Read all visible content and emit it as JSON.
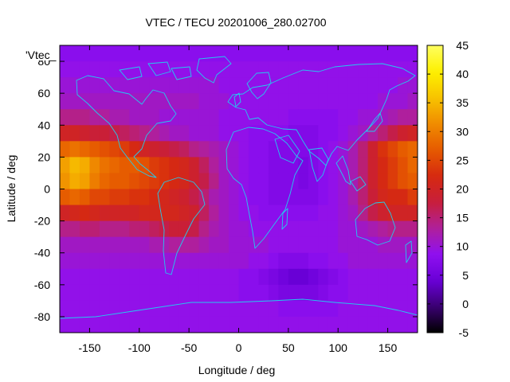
{
  "chart_data": {
    "type": "heatmap",
    "title": "VTEC / TECU 20201006_280.02700",
    "xlabel": "Longitude / deg",
    "ylabel": "Latitude / deg",
    "legend_label": "'Vtec_",
    "legend_placement": "top-left",
    "xlim": [
      -180,
      180
    ],
    "ylim": [
      -90,
      90
    ],
    "xticks": [
      -150,
      -100,
      -50,
      0,
      50,
      100,
      150
    ],
    "yticks": [
      -80,
      -60,
      -40,
      -20,
      0,
      20,
      40,
      60,
      80
    ],
    "colorbar": {
      "range": [
        -5,
        45
      ],
      "ticks": [
        -5,
        0,
        5,
        10,
        15,
        20,
        25,
        30,
        35,
        40,
        45
      ],
      "palette": [
        "#000000",
        "#3a0072",
        "#6a00d8",
        "#8f10f0",
        "#b0209a",
        "#c81e3a",
        "#d62a10",
        "#e65a00",
        "#f08c00",
        "#f8c400",
        "#fdf000",
        "#ffff60"
      ]
    },
    "grid": {
      "lon_step": 10,
      "lat_step": 10,
      "lons": [
        -180,
        -170,
        -160,
        -150,
        -140,
        -130,
        -120,
        -110,
        -100,
        -90,
        -80,
        -70,
        -60,
        -50,
        -40,
        -30,
        -20,
        -10,
        0,
        10,
        20,
        30,
        40,
        50,
        60,
        70,
        80,
        90,
        100,
        110,
        120,
        130,
        140,
        150,
        160,
        170
      ],
      "lats": [
        80,
        70,
        60,
        50,
        40,
        30,
        20,
        10,
        0,
        -10,
        -20,
        -30,
        -40,
        -50,
        -60,
        -70,
        -80,
        -90
      ],
      "values": [
        [
          8,
          8,
          8,
          8,
          8,
          8,
          8,
          8,
          8,
          8,
          8,
          8,
          8,
          8,
          8,
          8,
          8,
          8,
          8,
          8,
          8,
          8,
          8,
          8,
          8,
          8,
          8,
          8,
          8,
          8,
          8,
          8,
          8,
          8,
          8,
          8
        ],
        [
          9,
          9,
          9,
          9,
          9,
          9,
          9,
          9,
          9,
          9,
          9,
          9,
          9,
          9,
          9,
          9,
          9,
          9,
          9,
          9,
          9,
          9,
          9,
          9,
          9,
          9,
          9,
          9,
          9,
          9,
          9,
          9,
          9,
          9,
          9,
          9
        ],
        [
          10,
          10,
          10,
          10,
          10,
          10,
          10,
          10,
          10,
          10,
          10,
          10,
          10,
          10,
          10,
          10,
          9,
          9,
          9,
          9,
          9,
          9,
          9,
          9,
          9,
          9,
          9,
          9,
          9,
          9,
          9,
          9,
          9,
          9,
          10,
          10
        ],
        [
          11,
          11,
          11,
          11,
          11,
          11,
          11,
          11,
          11,
          11,
          11,
          11,
          11,
          11,
          10,
          10,
          10,
          9,
          9,
          9,
          9,
          9,
          9,
          9,
          9,
          9,
          9,
          9,
          9,
          9,
          9,
          9,
          10,
          10,
          10,
          11
        ],
        [
          14,
          14,
          14,
          13,
          13,
          12,
          12,
          11,
          11,
          11,
          10,
          10,
          10,
          10,
          10,
          10,
          9,
          9,
          9,
          9,
          9,
          9,
          9,
          8,
          8,
          8,
          8,
          8,
          9,
          9,
          10,
          10,
          11,
          12,
          13,
          13
        ],
        [
          20,
          20,
          19,
          18,
          18,
          17,
          16,
          15,
          14,
          13,
          12,
          11,
          11,
          10,
          10,
          10,
          9,
          9,
          9,
          8,
          8,
          8,
          8,
          7,
          7,
          7,
          8,
          8,
          9,
          10,
          11,
          13,
          15,
          17,
          19,
          20
        ],
        [
          28,
          29,
          28,
          27,
          26,
          25,
          24,
          22,
          20,
          19,
          18,
          17,
          16,
          14,
          13,
          12,
          11,
          10,
          9,
          8,
          8,
          7,
          7,
          7,
          7,
          7,
          8,
          9,
          10,
          12,
          15,
          19,
          23,
          25,
          27,
          28
        ],
        [
          33,
          35,
          34,
          31,
          29,
          28,
          27,
          27,
          26,
          24,
          23,
          22,
          21,
          19,
          16,
          13,
          11,
          10,
          9,
          8,
          8,
          7,
          7,
          7,
          6,
          7,
          8,
          9,
          10,
          12,
          15,
          19,
          22,
          24,
          26,
          28
        ],
        [
          32,
          34,
          33,
          30,
          28,
          27,
          27,
          26,
          25,
          24,
          23,
          22,
          21,
          19,
          17,
          14,
          11,
          10,
          9,
          8,
          8,
          7,
          7,
          7,
          6,
          7,
          8,
          9,
          10,
          12,
          15,
          19,
          22,
          24,
          26,
          27
        ],
        [
          27,
          28,
          27,
          25,
          25,
          24,
          24,
          23,
          23,
          22,
          21,
          20,
          19,
          17,
          15,
          12,
          11,
          10,
          9,
          8,
          8,
          7,
          7,
          7,
          7,
          7,
          8,
          9,
          10,
          12,
          15,
          18,
          21,
          22,
          22,
          24
        ],
        [
          20,
          21,
          22,
          21,
          20,
          20,
          20,
          20,
          21,
          21,
          21,
          21,
          20,
          19,
          16,
          13,
          11,
          10,
          9,
          9,
          8,
          8,
          8,
          8,
          8,
          8,
          9,
          9,
          10,
          11,
          14,
          17,
          19,
          20,
          20,
          20
        ],
        [
          14,
          14,
          15,
          15,
          14,
          14,
          14,
          15,
          15,
          16,
          17,
          18,
          18,
          17,
          14,
          12,
          11,
          10,
          10,
          9,
          9,
          9,
          9,
          9,
          9,
          9,
          9,
          9,
          10,
          10,
          11,
          12,
          13,
          14,
          14,
          14
        ],
        [
          11,
          11,
          11,
          11,
          11,
          11,
          11,
          11,
          11,
          12,
          12,
          13,
          13,
          13,
          12,
          11,
          11,
          10,
          10,
          10,
          10,
          9,
          9,
          9,
          9,
          9,
          9,
          9,
          10,
          10,
          10,
          10,
          11,
          11,
          11,
          11
        ],
        [
          10,
          10,
          10,
          10,
          10,
          10,
          10,
          10,
          10,
          10,
          10,
          10,
          10,
          10,
          10,
          10,
          10,
          10,
          10,
          9,
          9,
          8,
          7,
          7,
          7,
          8,
          8,
          9,
          9,
          10,
          10,
          10,
          10,
          10,
          10,
          10
        ],
        [
          9,
          9,
          9,
          9,
          9,
          9,
          9,
          9,
          9,
          9,
          9,
          9,
          9,
          9,
          9,
          9,
          9,
          9,
          8,
          8,
          7,
          6,
          5,
          4,
          4,
          5,
          6,
          7,
          8,
          9,
          9,
          9,
          9,
          9,
          9,
          9
        ],
        [
          9,
          9,
          9,
          9,
          9,
          9,
          9,
          9,
          9,
          9,
          9,
          9,
          9,
          9,
          9,
          9,
          9,
          9,
          8,
          8,
          8,
          7,
          6,
          6,
          6,
          6,
          7,
          8,
          8,
          9,
          9,
          9,
          9,
          9,
          9,
          9
        ],
        [
          9,
          9,
          9,
          9,
          9,
          9,
          9,
          9,
          9,
          9,
          9,
          9,
          9,
          9,
          9,
          9,
          9,
          9,
          9,
          9,
          9,
          9,
          8,
          8,
          8,
          8,
          8,
          8,
          9,
          9,
          9,
          9,
          9,
          9,
          9,
          9
        ],
        [
          9,
          9,
          9,
          9,
          9,
          9,
          9,
          9,
          9,
          9,
          9,
          9,
          9,
          9,
          9,
          9,
          9,
          9,
          9,
          9,
          9,
          9,
          9,
          9,
          9,
          9,
          9,
          9,
          9,
          9,
          9,
          9,
          9,
          9,
          9,
          9
        ]
      ]
    }
  }
}
